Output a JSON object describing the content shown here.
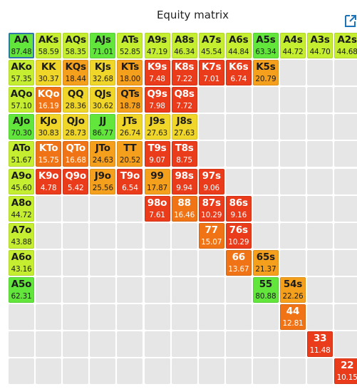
{
  "header": {
    "title": "Equity matrix",
    "expand_icon": "external-link-icon"
  },
  "colors": {
    "green": "#62e63c",
    "lime": "#c5ee31",
    "yellow": "#f0d629",
    "amber": "#f5a01d",
    "orange": "#f07416",
    "red": "#ea3b1a",
    "empty": "#e6e6e6",
    "selected_border": "#2f77a8"
  },
  "matrix": {
    "selected": "AA",
    "rows": [
      [
        {
          "label": "AA",
          "value": "87.48",
          "color": "green"
        },
        {
          "label": "AKs",
          "value": "58.59",
          "color": "lime"
        },
        {
          "label": "AQs",
          "value": "58.35",
          "color": "lime"
        },
        {
          "label": "AJs",
          "value": "71.01",
          "color": "green"
        },
        {
          "label": "ATs",
          "value": "52.85",
          "color": "lime"
        },
        {
          "label": "A9s",
          "value": "47.19",
          "color": "lime"
        },
        {
          "label": "A8s",
          "value": "46.34",
          "color": "lime"
        },
        {
          "label": "A7s",
          "value": "45.54",
          "color": "lime"
        },
        {
          "label": "A6s",
          "value": "44.84",
          "color": "lime"
        },
        {
          "label": "A5s",
          "value": "63.34",
          "color": "green"
        },
        {
          "label": "A4s",
          "value": "44.72",
          "color": "lime"
        },
        {
          "label": "A3s",
          "value": "44.70",
          "color": "lime"
        },
        {
          "label": "A2s",
          "value": "44.68",
          "color": "lime"
        }
      ],
      [
        {
          "label": "AKo",
          "value": "57.35",
          "color": "lime"
        },
        {
          "label": "KK",
          "value": "30.37",
          "color": "yellow"
        },
        {
          "label": "KQs",
          "value": "18.44",
          "color": "amber"
        },
        {
          "label": "KJs",
          "value": "32.68",
          "color": "yellow"
        },
        {
          "label": "KTs",
          "value": "18.00",
          "color": "amber"
        },
        {
          "label": "K9s",
          "value": "7.48",
          "color": "red"
        },
        {
          "label": "K8s",
          "value": "7.22",
          "color": "red"
        },
        {
          "label": "K7s",
          "value": "7.01",
          "color": "red"
        },
        {
          "label": "K6s",
          "value": "6.74",
          "color": "red"
        },
        {
          "label": "K5s",
          "value": "20.79",
          "color": "amber"
        },
        null,
        null,
        null
      ],
      [
        {
          "label": "AQo",
          "value": "57.10",
          "color": "lime"
        },
        {
          "label": "KQo",
          "value": "16.19",
          "color": "orange"
        },
        {
          "label": "QQ",
          "value": "28.36",
          "color": "yellow"
        },
        {
          "label": "QJs",
          "value": "30.62",
          "color": "yellow"
        },
        {
          "label": "QTs",
          "value": "18.78",
          "color": "amber"
        },
        {
          "label": "Q9s",
          "value": "7.98",
          "color": "red"
        },
        {
          "label": "Q8s",
          "value": "7.72",
          "color": "red"
        },
        null,
        null,
        null,
        null,
        null,
        null
      ],
      [
        {
          "label": "AJo",
          "value": "70.30",
          "color": "green"
        },
        {
          "label": "KJo",
          "value": "30.83",
          "color": "yellow"
        },
        {
          "label": "QJo",
          "value": "28.73",
          "color": "yellow"
        },
        {
          "label": "JJ",
          "value": "86.77",
          "color": "green"
        },
        {
          "label": "JTs",
          "value": "26.74",
          "color": "yellow"
        },
        {
          "label": "J9s",
          "value": "27.63",
          "color": "yellow"
        },
        {
          "label": "J8s",
          "value": "27.63",
          "color": "yellow"
        },
        null,
        null,
        null,
        null,
        null,
        null
      ],
      [
        {
          "label": "ATo",
          "value": "51.67",
          "color": "lime"
        },
        {
          "label": "KTo",
          "value": "15.75",
          "color": "orange"
        },
        {
          "label": "QTo",
          "value": "16.68",
          "color": "orange"
        },
        {
          "label": "JTo",
          "value": "24.63",
          "color": "amber"
        },
        {
          "label": "TT",
          "value": "20.52",
          "color": "amber"
        },
        {
          "label": "T9s",
          "value": "9.07",
          "color": "red"
        },
        {
          "label": "T8s",
          "value": "8.75",
          "color": "red"
        },
        null,
        null,
        null,
        null,
        null,
        null
      ],
      [
        {
          "label": "A9o",
          "value": "45.60",
          "color": "lime"
        },
        {
          "label": "K9o",
          "value": "4.78",
          "color": "red"
        },
        {
          "label": "Q9o",
          "value": "5.42",
          "color": "red"
        },
        {
          "label": "J9o",
          "value": "25.56",
          "color": "amber"
        },
        {
          "label": "T9o",
          "value": "6.54",
          "color": "red"
        },
        {
          "label": "99",
          "value": "17.87",
          "color": "amber"
        },
        {
          "label": "98s",
          "value": "9.94",
          "color": "red"
        },
        {
          "label": "97s",
          "value": "9.06",
          "color": "red"
        },
        null,
        null,
        null,
        null,
        null
      ],
      [
        {
          "label": "A8o",
          "value": "44.72",
          "color": "lime"
        },
        null,
        null,
        null,
        null,
        {
          "label": "98o",
          "value": "7.61",
          "color": "red"
        },
        {
          "label": "88",
          "value": "16.46",
          "color": "orange"
        },
        {
          "label": "87s",
          "value": "10.29",
          "color": "red"
        },
        {
          "label": "86s",
          "value": "9.16",
          "color": "red"
        },
        null,
        null,
        null,
        null
      ],
      [
        {
          "label": "A7o",
          "value": "43.88",
          "color": "lime"
        },
        null,
        null,
        null,
        null,
        null,
        null,
        {
          "label": "77",
          "value": "15.07",
          "color": "orange"
        },
        {
          "label": "76s",
          "value": "10.29",
          "color": "red"
        },
        null,
        null,
        null,
        null
      ],
      [
        {
          "label": "A6o",
          "value": "43.16",
          "color": "lime"
        },
        null,
        null,
        null,
        null,
        null,
        null,
        null,
        {
          "label": "66",
          "value": "13.67",
          "color": "orange"
        },
        {
          "label": "65s",
          "value": "21.37",
          "color": "amber"
        },
        null,
        null,
        null
      ],
      [
        {
          "label": "A5o",
          "value": "62.31",
          "color": "green"
        },
        null,
        null,
        null,
        null,
        null,
        null,
        null,
        null,
        {
          "label": "55",
          "value": "80.88",
          "color": "green"
        },
        {
          "label": "54s",
          "value": "22.26",
          "color": "amber"
        },
        null,
        null
      ],
      [
        null,
        null,
        null,
        null,
        null,
        null,
        null,
        null,
        null,
        null,
        {
          "label": "44",
          "value": "12.81",
          "color": "orange"
        },
        null,
        null
      ],
      [
        null,
        null,
        null,
        null,
        null,
        null,
        null,
        null,
        null,
        null,
        null,
        {
          "label": "33",
          "value": "11.48",
          "color": "red"
        },
        null
      ],
      [
        null,
        null,
        null,
        null,
        null,
        null,
        null,
        null,
        null,
        null,
        null,
        null,
        {
          "label": "22",
          "value": "10.15",
          "color": "red"
        }
      ]
    ]
  }
}
